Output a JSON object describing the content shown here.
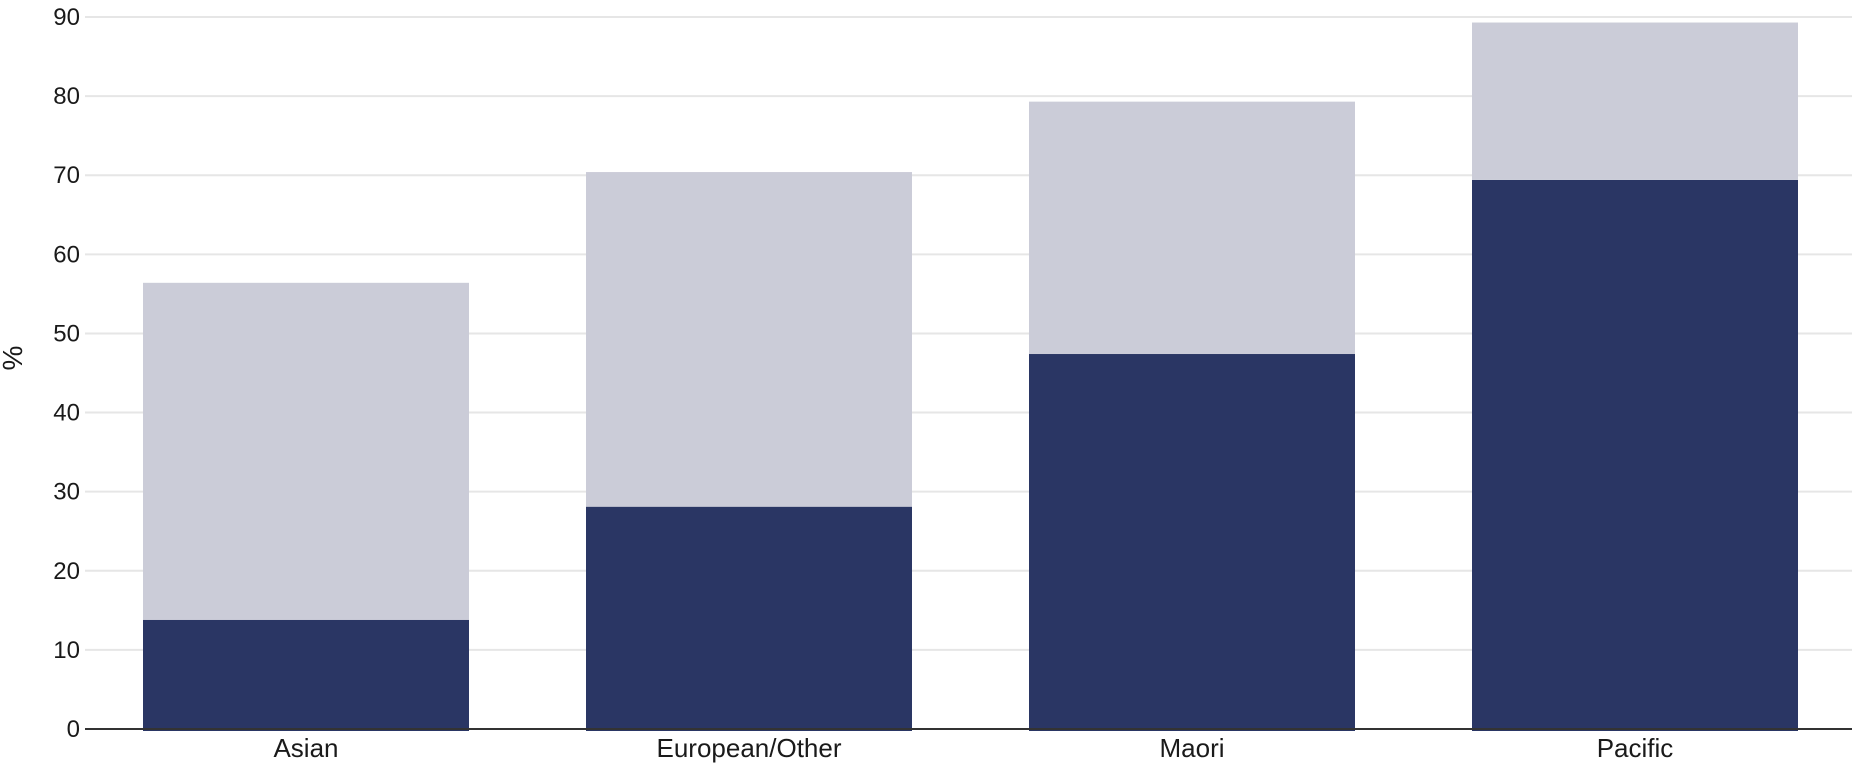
{
  "chart_data": {
    "type": "bar",
    "stacked": true,
    "categories": [
      "Asian",
      "European/Other",
      "Maori",
      "Pacific"
    ],
    "series": [
      {
        "values": [
          13.8,
          28.1,
          47.4,
          69.4
        ],
        "color": "#2a3664"
      },
      {
        "values": [
          42.6,
          42.3,
          31.9,
          19.9
        ],
        "color": "#cbccd8"
      }
    ],
    "totals": [
      56.4,
      70.4,
      79.3,
      89.3
    ],
    "ylabel": "%",
    "xlabel": "",
    "title": "",
    "ylim": [
      0,
      90
    ],
    "yticks": [
      0,
      10,
      20,
      30,
      40,
      50,
      60,
      70,
      80,
      90
    ],
    "grid": true,
    "legend": "none"
  }
}
